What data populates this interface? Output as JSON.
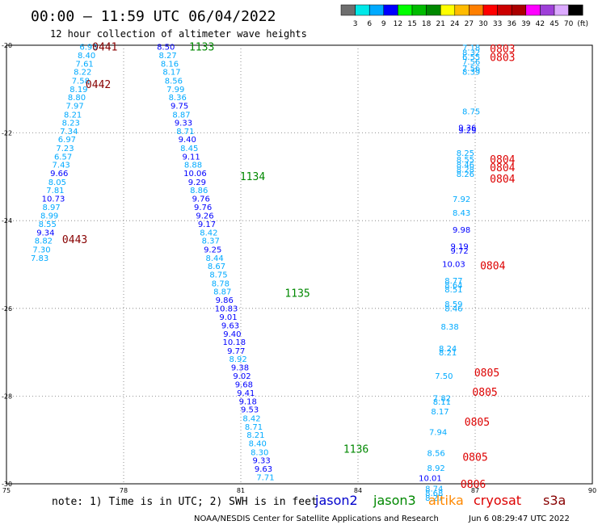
{
  "header": {
    "title": "00:00 – 11:59 UTC 06/04/2022",
    "subtitle": "12 hour collection of altimeter wave heights"
  },
  "colorbar": {
    "colors": [
      "#6e6e6e",
      "#00e8e8",
      "#00aaff",
      "#0000ff",
      "#00ff00",
      "#00bb00",
      "#008800",
      "#ffff00",
      "#ffbb00",
      "#ff7f00",
      "#ff0000",
      "#cc0000",
      "#aa0000",
      "#ff00ff",
      "#9e3fd8",
      "#dcaaff",
      "#000000"
    ],
    "labels": [
      "3",
      "6",
      "9",
      "12",
      "15",
      "18",
      "21",
      "24",
      "27",
      "30",
      "33",
      "36",
      "39",
      "42",
      "45",
      "70",
      "(ft)"
    ]
  },
  "footer": {
    "note": "note: 1) Time is in UTC; 2) SWH is in feet",
    "credit": "NOAA/NESDIS Center for Satellite Applications and Research",
    "timestamp": "Jun  6 08:29:47 UTC 2022",
    "satellites": [
      {
        "name": "jason2",
        "color": "#0000cc"
      },
      {
        "name": "jason3",
        "color": "#008800"
      },
      {
        "name": "altika",
        "color": "#ff8800"
      },
      {
        "name": "cryosat",
        "color": "#dd0000"
      },
      {
        "name": "s3a",
        "color": "#880000"
      }
    ]
  },
  "chart_data": {
    "type": "scatter",
    "xlim": [
      75,
      90
    ],
    "ylim": [
      -30,
      -20
    ],
    "xticks": [
      75,
      78,
      81,
      84,
      87,
      90
    ],
    "yticks": [
      -20,
      -22,
      -24,
      -26,
      -28,
      -30
    ],
    "grid": true,
    "points": [
      {
        "x": 77.1,
        "y": -20.03,
        "v": "6.93",
        "c": "#00aaff"
      },
      {
        "x": 77.05,
        "y": -20.22,
        "v": "8.40",
        "c": "#00aaff"
      },
      {
        "x": 77.0,
        "y": -20.41,
        "v": "7.61",
        "c": "#00aaff"
      },
      {
        "x": 76.95,
        "y": -20.6,
        "v": "8.22",
        "c": "#00aaff"
      },
      {
        "x": 76.9,
        "y": -20.8,
        "v": "7.58",
        "c": "#00aaff"
      },
      {
        "x": 76.85,
        "y": -20.99,
        "v": "8.19",
        "c": "#00aaff"
      },
      {
        "x": 76.8,
        "y": -21.18,
        "v": "8.80",
        "c": "#00aaff"
      },
      {
        "x": 76.75,
        "y": -21.37,
        "v": "7.97",
        "c": "#00aaff"
      },
      {
        "x": 76.7,
        "y": -21.57,
        "v": "8.21",
        "c": "#00aaff"
      },
      {
        "x": 76.65,
        "y": -21.76,
        "v": "8.23",
        "c": "#00aaff"
      },
      {
        "x": 76.6,
        "y": -21.95,
        "v": "7.34",
        "c": "#00aaff"
      },
      {
        "x": 76.55,
        "y": -22.14,
        "v": "6.97",
        "c": "#00aaff"
      },
      {
        "x": 76.5,
        "y": -22.34,
        "v": "7.23",
        "c": "#00aaff"
      },
      {
        "x": 76.45,
        "y": -22.53,
        "v": "6.57",
        "c": "#00aaff"
      },
      {
        "x": 76.4,
        "y": -22.72,
        "v": "7.43",
        "c": "#00aaff"
      },
      {
        "x": 76.35,
        "y": -22.91,
        "v": "9.66",
        "c": "#0000ff"
      },
      {
        "x": 76.3,
        "y": -23.11,
        "v": "8.05",
        "c": "#00aaff"
      },
      {
        "x": 76.25,
        "y": -23.3,
        "v": "7.81",
        "c": "#00aaff"
      },
      {
        "x": 76.2,
        "y": -23.49,
        "v": "10.73",
        "c": "#0000ff"
      },
      {
        "x": 76.15,
        "y": -23.68,
        "v": "8.97",
        "c": "#00aaff"
      },
      {
        "x": 76.1,
        "y": -23.88,
        "v": "8.99",
        "c": "#00aaff"
      },
      {
        "x": 76.05,
        "y": -24.07,
        "v": "8.55",
        "c": "#00aaff"
      },
      {
        "x": 76.0,
        "y": -24.26,
        "v": "9.34",
        "c": "#0000ff"
      },
      {
        "x": 75.95,
        "y": -24.45,
        "v": "8.82",
        "c": "#00aaff"
      },
      {
        "x": 75.9,
        "y": -24.65,
        "v": "7.30",
        "c": "#00aaff"
      },
      {
        "x": 75.85,
        "y": -24.84,
        "v": "7.83",
        "c": "#00aaff"
      },
      {
        "x": 79.08,
        "y": -20.03,
        "v": "8.50",
        "c": "#0000ff"
      },
      {
        "x": 79.13,
        "y": -20.22,
        "v": "8.27",
        "c": "#00aaff"
      },
      {
        "x": 79.18,
        "y": -20.41,
        "v": "8.16",
        "c": "#00aaff"
      },
      {
        "x": 79.23,
        "y": -20.6,
        "v": "8.17",
        "c": "#00aaff"
      },
      {
        "x": 79.28,
        "y": -20.8,
        "v": "8.56",
        "c": "#00aaff"
      },
      {
        "x": 79.33,
        "y": -20.99,
        "v": "7.99",
        "c": "#00aaff"
      },
      {
        "x": 79.38,
        "y": -21.18,
        "v": "8.36",
        "c": "#00aaff"
      },
      {
        "x": 79.43,
        "y": -21.37,
        "v": "9.75",
        "c": "#0000ff"
      },
      {
        "x": 79.48,
        "y": -21.57,
        "v": "8.87",
        "c": "#00aaff"
      },
      {
        "x": 79.53,
        "y": -21.76,
        "v": "9.33",
        "c": "#0000ff"
      },
      {
        "x": 79.58,
        "y": -21.95,
        "v": "8.71",
        "c": "#00aaff"
      },
      {
        "x": 79.63,
        "y": -22.14,
        "v": "9.40",
        "c": "#0000ff"
      },
      {
        "x": 79.68,
        "y": -22.34,
        "v": "8.45",
        "c": "#00aaff"
      },
      {
        "x": 79.73,
        "y": -22.53,
        "v": "9.11",
        "c": "#0000ff"
      },
      {
        "x": 79.78,
        "y": -22.72,
        "v": "8.88",
        "c": "#00aaff"
      },
      {
        "x": 79.83,
        "y": -22.91,
        "v": "10.06",
        "c": "#0000ff"
      },
      {
        "x": 79.88,
        "y": -23.11,
        "v": "9.29",
        "c": "#0000ff"
      },
      {
        "x": 79.93,
        "y": -23.3,
        "v": "8.86",
        "c": "#00aaff"
      },
      {
        "x": 79.98,
        "y": -23.49,
        "v": "9.76",
        "c": "#0000ff"
      },
      {
        "x": 80.03,
        "y": -23.68,
        "v": "9.76",
        "c": "#0000ff"
      },
      {
        "x": 80.08,
        "y": -23.88,
        "v": "9.26",
        "c": "#0000ff"
      },
      {
        "x": 80.13,
        "y": -24.07,
        "v": "9.17",
        "c": "#0000ff"
      },
      {
        "x": 80.18,
        "y": -24.26,
        "v": "8.42",
        "c": "#00aaff"
      },
      {
        "x": 80.23,
        "y": -24.45,
        "v": "8.37",
        "c": "#00aaff"
      },
      {
        "x": 80.28,
        "y": -24.65,
        "v": "9.25",
        "c": "#0000ff"
      },
      {
        "x": 80.33,
        "y": -24.84,
        "v": "8.44",
        "c": "#00aaff"
      },
      {
        "x": 80.38,
        "y": -25.03,
        "v": "8.67",
        "c": "#00aaff"
      },
      {
        "x": 80.43,
        "y": -25.22,
        "v": "8.75",
        "c": "#00aaff"
      },
      {
        "x": 80.48,
        "y": -25.42,
        "v": "8.78",
        "c": "#00aaff"
      },
      {
        "x": 80.53,
        "y": -25.61,
        "v": "8.87",
        "c": "#00aaff"
      },
      {
        "x": 80.58,
        "y": -25.8,
        "v": "9.86",
        "c": "#0000ff"
      },
      {
        "x": 80.63,
        "y": -25.99,
        "v": "10.83",
        "c": "#0000ff"
      },
      {
        "x": 80.68,
        "y": -26.19,
        "v": "9.01",
        "c": "#0000ff"
      },
      {
        "x": 80.73,
        "y": -26.38,
        "v": "9.63",
        "c": "#0000ff"
      },
      {
        "x": 80.78,
        "y": -26.57,
        "v": "9.40",
        "c": "#0000ff"
      },
      {
        "x": 80.83,
        "y": -26.76,
        "v": "10.18",
        "c": "#0000ff"
      },
      {
        "x": 80.88,
        "y": -26.96,
        "v": "9.77",
        "c": "#0000ff"
      },
      {
        "x": 80.93,
        "y": -27.15,
        "v": "8.92",
        "c": "#00aaff"
      },
      {
        "x": 80.98,
        "y": -27.34,
        "v": "9.38",
        "c": "#0000ff"
      },
      {
        "x": 81.03,
        "y": -27.53,
        "v": "9.02",
        "c": "#0000ff"
      },
      {
        "x": 81.08,
        "y": -27.73,
        "v": "9.68",
        "c": "#0000ff"
      },
      {
        "x": 81.13,
        "y": -27.92,
        "v": "9.41",
        "c": "#0000ff"
      },
      {
        "x": 81.18,
        "y": -28.11,
        "v": "9.18",
        "c": "#0000ff"
      },
      {
        "x": 81.23,
        "y": -28.3,
        "v": "9.53",
        "c": "#0000ff"
      },
      {
        "x": 81.28,
        "y": -28.5,
        "v": "8.42",
        "c": "#00aaff"
      },
      {
        "x": 81.33,
        "y": -28.69,
        "v": "8.71",
        "c": "#00aaff"
      },
      {
        "x": 81.38,
        "y": -28.88,
        "v": "8.21",
        "c": "#00aaff"
      },
      {
        "x": 81.43,
        "y": -29.07,
        "v": "8.40",
        "c": "#00aaff"
      },
      {
        "x": 81.48,
        "y": -29.27,
        "v": "8.30",
        "c": "#00aaff"
      },
      {
        "x": 81.53,
        "y": -29.46,
        "v": "9.33",
        "c": "#0000ff"
      },
      {
        "x": 81.58,
        "y": -29.65,
        "v": "9.63",
        "c": "#0000ff"
      },
      {
        "x": 81.63,
        "y": -29.84,
        "v": "7.71",
        "c": "#00aaff"
      },
      {
        "x": 86.9,
        "y": -20.05,
        "v": "7.18",
        "c": "#00aaff"
      },
      {
        "x": 86.9,
        "y": -20.16,
        "v": "8.32",
        "c": "#00aaff"
      },
      {
        "x": 86.9,
        "y": -20.26,
        "v": "6.55",
        "c": "#00aaff"
      },
      {
        "x": 86.9,
        "y": -20.37,
        "v": "7.56",
        "c": "#00aaff"
      },
      {
        "x": 86.9,
        "y": -20.52,
        "v": "7.56",
        "c": "#00aaff"
      },
      {
        "x": 86.9,
        "y": -20.6,
        "v": "8.39",
        "c": "#00aaff"
      },
      {
        "x": 86.9,
        "y": -21.5,
        "v": "8.75",
        "c": "#00aaff"
      },
      {
        "x": 86.8,
        "y": -21.87,
        "v": "9.36",
        "c": "#0000ff"
      },
      {
        "x": 86.8,
        "y": -21.93,
        "v": "9.29",
        "c": "#0000ff"
      },
      {
        "x": 86.75,
        "y": -22.45,
        "v": "8.25",
        "c": "#00aaff"
      },
      {
        "x": 86.75,
        "y": -22.6,
        "v": "8.55",
        "c": "#00aaff"
      },
      {
        "x": 86.75,
        "y": -22.72,
        "v": "8.46",
        "c": "#00aaff"
      },
      {
        "x": 86.75,
        "y": -22.83,
        "v": "8.28",
        "c": "#00aaff"
      },
      {
        "x": 86.75,
        "y": -22.93,
        "v": "8.26",
        "c": "#00aaff"
      },
      {
        "x": 86.65,
        "y": -23.5,
        "v": "7.92",
        "c": "#00aaff"
      },
      {
        "x": 86.65,
        "y": -23.81,
        "v": "8.43",
        "c": "#00aaff"
      },
      {
        "x": 86.65,
        "y": -24.2,
        "v": "9.98",
        "c": "#0000ff"
      },
      {
        "x": 86.6,
        "y": -24.58,
        "v": "9.19",
        "c": "#0000ff"
      },
      {
        "x": 86.6,
        "y": -24.68,
        "v": "9.72",
        "c": "#0000ff"
      },
      {
        "x": 86.45,
        "y": -24.98,
        "v": "10.03",
        "c": "#0000ff"
      },
      {
        "x": 86.45,
        "y": -25.36,
        "v": "8.77",
        "c": "#00aaff"
      },
      {
        "x": 86.45,
        "y": -25.46,
        "v": "8.64",
        "c": "#00aaff"
      },
      {
        "x": 86.45,
        "y": -25.56,
        "v": "8.51",
        "c": "#00aaff"
      },
      {
        "x": 86.45,
        "y": -25.89,
        "v": "8.59",
        "c": "#00aaff"
      },
      {
        "x": 86.45,
        "y": -25.99,
        "v": "8.46",
        "c": "#00aaff"
      },
      {
        "x": 86.35,
        "y": -26.41,
        "v": "8.38",
        "c": "#00aaff"
      },
      {
        "x": 86.3,
        "y": -26.91,
        "v": "8.24",
        "c": "#00aaff"
      },
      {
        "x": 86.3,
        "y": -27.0,
        "v": "8.21",
        "c": "#00aaff"
      },
      {
        "x": 86.2,
        "y": -27.53,
        "v": "7.50",
        "c": "#00aaff"
      },
      {
        "x": 86.15,
        "y": -28.04,
        "v": "7.82",
        "c": "#00aaff"
      },
      {
        "x": 86.15,
        "y": -28.12,
        "v": "8.11",
        "c": "#00aaff"
      },
      {
        "x": 86.1,
        "y": -28.34,
        "v": "8.17",
        "c": "#00aaff"
      },
      {
        "x": 86.05,
        "y": -28.81,
        "v": "7.94",
        "c": "#00aaff"
      },
      {
        "x": 86.0,
        "y": -29.29,
        "v": "8.56",
        "c": "#00aaff"
      },
      {
        "x": 86.0,
        "y": -29.63,
        "v": "8.92",
        "c": "#00aaff"
      },
      {
        "x": 85.95,
        "y": -30.1,
        "v": "8.74",
        "c": "#00aaff"
      },
      {
        "x": 85.95,
        "y": -30.2,
        "v": "8.68",
        "c": "#00aaff"
      },
      {
        "x": 85.95,
        "y": -30.31,
        "v": "8.27",
        "c": "#00aaff"
      },
      {
        "x": 85.85,
        "y": -29.86,
        "v": "10.01",
        "c": "#0000ff"
      }
    ],
    "pass_labels": [
      {
        "x": 77.52,
        "y": -20.03,
        "v": "0441",
        "c": "#880000"
      },
      {
        "x": 77.35,
        "y": -20.88,
        "v": "0442",
        "c": "#880000"
      },
      {
        "x": 76.75,
        "y": -24.42,
        "v": "0443",
        "c": "#880000"
      },
      {
        "x": 80.0,
        "y": -20.03,
        "v": "1133",
        "c": "#008800"
      },
      {
        "x": 81.3,
        "y": -22.98,
        "v": "1134",
        "c": "#008800"
      },
      {
        "x": 82.45,
        "y": -25.64,
        "v": "1135",
        "c": "#008800"
      },
      {
        "x": 83.95,
        "y": -29.2,
        "v": "1136",
        "c": "#008800"
      },
      {
        "x": 87.7,
        "y": -20.07,
        "v": "0803",
        "c": "#dd0000"
      },
      {
        "x": 87.7,
        "y": -20.27,
        "v": "0803",
        "c": "#dd0000"
      },
      {
        "x": 87.7,
        "y": -22.6,
        "v": "0804",
        "c": "#dd0000"
      },
      {
        "x": 87.7,
        "y": -22.78,
        "v": "0804",
        "c": "#dd0000"
      },
      {
        "x": 87.7,
        "y": -23.04,
        "v": "0804",
        "c": "#dd0000"
      },
      {
        "x": 87.45,
        "y": -25.02,
        "v": "0804",
        "c": "#dd0000"
      },
      {
        "x": 87.3,
        "y": -27.46,
        "v": "0805",
        "c": "#dd0000"
      },
      {
        "x": 87.25,
        "y": -27.9,
        "v": "0805",
        "c": "#dd0000"
      },
      {
        "x": 87.05,
        "y": -28.58,
        "v": "0805",
        "c": "#dd0000"
      },
      {
        "x": 87.0,
        "y": -29.38,
        "v": "0805",
        "c": "#dd0000"
      },
      {
        "x": 86.95,
        "y": -30.0,
        "v": "0806",
        "c": "#dd0000"
      }
    ]
  }
}
